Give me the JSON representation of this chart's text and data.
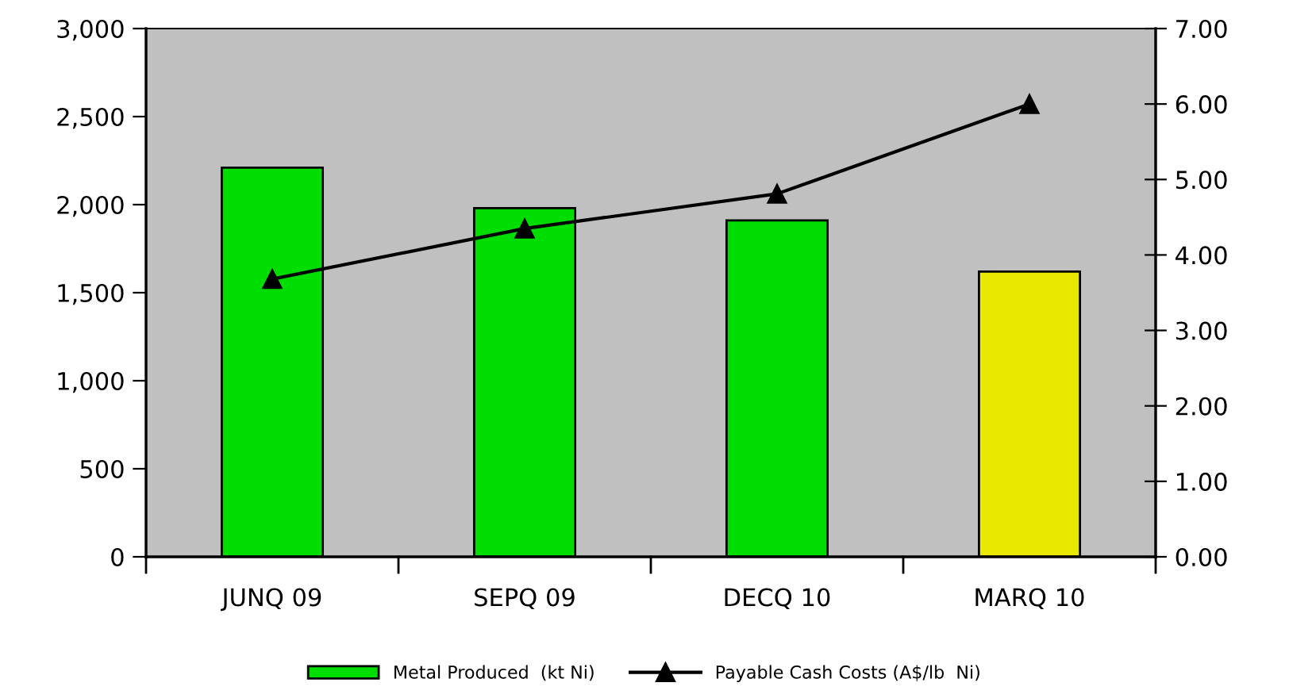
{
  "chart_data": {
    "type": "bar",
    "categories": [
      "JUNQ 09",
      "SEPQ 09",
      "DECQ 10",
      "MARQ 10"
    ],
    "series": [
      {
        "name": "Metal Produced  (kt Ni)",
        "colors": [
          "#00dd00",
          "#00dd00",
          "#00dd00",
          "#e8e800"
        ],
        "values": [
          2210,
          1980,
          1910,
          1620
        ]
      },
      {
        "name": "Payable Cash Costs (A$/lb  Ni)",
        "type": "line",
        "axis": "y2",
        "color": "#000000",
        "marker": "triangle",
        "values": [
          3.68,
          4.35,
          4.81,
          6.0
        ]
      }
    ],
    "ylim": [
      0,
      3000
    ],
    "yticks": [
      {
        "value": 0,
        "label": "0"
      },
      {
        "value": 500,
        "label": "500"
      },
      {
        "value": 1000,
        "label": "1,000"
      },
      {
        "value": 1500,
        "label": "1,500"
      },
      {
        "value": 2000,
        "label": "2,000"
      },
      {
        "value": 2500,
        "label": "2,500"
      },
      {
        "value": 3000,
        "label": "3,000"
      }
    ],
    "y2lim": [
      0,
      7
    ],
    "y2ticks": [
      {
        "value": 0,
        "label": "0.00"
      },
      {
        "value": 1,
        "label": "1.00"
      },
      {
        "value": 2,
        "label": "2.00"
      },
      {
        "value": 3,
        "label": "3.00"
      },
      {
        "value": 4,
        "label": "4.00"
      },
      {
        "value": 5,
        "label": "5.00"
      },
      {
        "value": 6,
        "label": "6.00"
      },
      {
        "value": 7,
        "label": "7.00"
      }
    ],
    "grid": false,
    "legend": "bottom"
  }
}
